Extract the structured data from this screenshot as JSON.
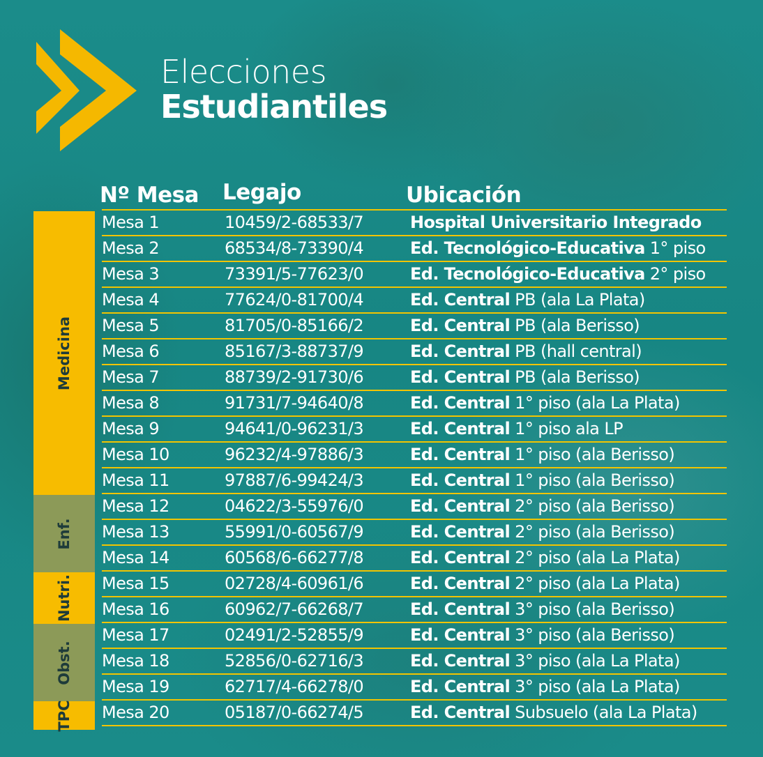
{
  "title": {
    "line1": "Elecciones",
    "line2": "Estudiantiles"
  },
  "headers": {
    "mesa": "Nº Mesa",
    "legajo": "Legajo",
    "ubicacion": "Ubicación"
  },
  "colors": {
    "accent": "#f2c400",
    "green_seg": "#8c9a58",
    "background": "#1a8a88"
  },
  "sidebar": [
    {
      "label": "Medicina",
      "rows": 11,
      "color": "#f7bc00"
    },
    {
      "label": "Enf.",
      "rows": 3,
      "color": "#8c9a58"
    },
    {
      "label": "Nutri.",
      "rows": 2,
      "color": "#f7bc00"
    },
    {
      "label": "Obst.",
      "rows": 3,
      "color": "#8c9a58"
    },
    {
      "label": "TPC",
      "rows": 1,
      "color": "#f7bc00"
    }
  ],
  "rows": [
    {
      "mesa": "Mesa 1",
      "legajo": "10459/2-68533/7",
      "bold": "Hospital Universitario Integrado",
      "rest": ""
    },
    {
      "mesa": "Mesa 2",
      "legajo": "68534/8-73390/4",
      "bold": "Ed. Tecnológico-Educativa",
      "rest": " 1° piso"
    },
    {
      "mesa": "Mesa 3",
      "legajo": "73391/5-77623/0",
      "bold": "Ed. Tecnológico-Educativa",
      "rest": " 2° piso"
    },
    {
      "mesa": "Mesa 4",
      "legajo": "77624/0-81700/4",
      "bold": "Ed. Central",
      "rest": " PB (ala La Plata)"
    },
    {
      "mesa": "Mesa 5",
      "legajo": "81705/0-85166/2",
      "bold": "Ed. Central",
      "rest": " PB (ala Berisso)"
    },
    {
      "mesa": "Mesa 6",
      "legajo": "85167/3-88737/9",
      "bold": "Ed. Central",
      "rest": " PB (hall central)"
    },
    {
      "mesa": "Mesa 7",
      "legajo": "88739/2-91730/6",
      "bold": "Ed. Central",
      "rest": " PB (ala Berisso)"
    },
    {
      "mesa": "Mesa 8",
      "legajo": "91731/7-94640/8",
      "bold": "Ed. Central",
      "rest": " 1° piso (ala La Plata)"
    },
    {
      "mesa": "Mesa 9",
      "legajo": "94641/0-96231/3",
      "bold": "Ed. Central",
      "rest": " 1° piso ala LP"
    },
    {
      "mesa": "Mesa 10",
      "legajo": "96232/4-97886/3",
      "bold": "Ed. Central",
      "rest": " 1° piso (ala Berisso)"
    },
    {
      "mesa": "Mesa 11",
      "legajo": "97887/6-99424/3",
      "bold": "Ed. Central",
      "rest": " 1° piso (ala Berisso)"
    },
    {
      "mesa": "Mesa 12",
      "legajo": "04622/3-55976/0",
      "bold": "Ed. Central",
      "rest": " 2° piso (ala Berisso)"
    },
    {
      "mesa": "Mesa 13",
      "legajo": "55991/0-60567/9",
      "bold": "Ed. Central",
      "rest": " 2° piso (ala Berisso)"
    },
    {
      "mesa": "Mesa 14",
      "legajo": "60568/6-66277/8",
      "bold": "Ed. Central",
      "rest": " 2° piso (ala La Plata)"
    },
    {
      "mesa": "Mesa 15",
      "legajo": "02728/4-60961/6",
      "bold": "Ed. Central",
      "rest": " 2° piso (ala La Plata)"
    },
    {
      "mesa": "Mesa 16",
      "legajo": "60962/7-66268/7",
      "bold": "Ed. Central",
      "rest": " 3° piso (ala Berisso)"
    },
    {
      "mesa": "Mesa 17",
      "legajo": "02491/2-52855/9",
      "bold": "Ed. Central",
      "rest": " 3° piso (ala Berisso)"
    },
    {
      "mesa": "Mesa 18",
      "legajo": "52856/0-62716/3",
      "bold": "Ed. Central",
      "rest": " 3° piso (ala La Plata)"
    },
    {
      "mesa": "Mesa 19",
      "legajo": "62717/4-66278/0",
      "bold": "Ed. Central",
      "rest": " 3° piso (ala La Plata)"
    },
    {
      "mesa": "Mesa 20",
      "legajo": "05187/0-66274/5",
      "bold": "Ed. Central",
      "rest": " Subsuelo (ala La Plata)"
    }
  ]
}
